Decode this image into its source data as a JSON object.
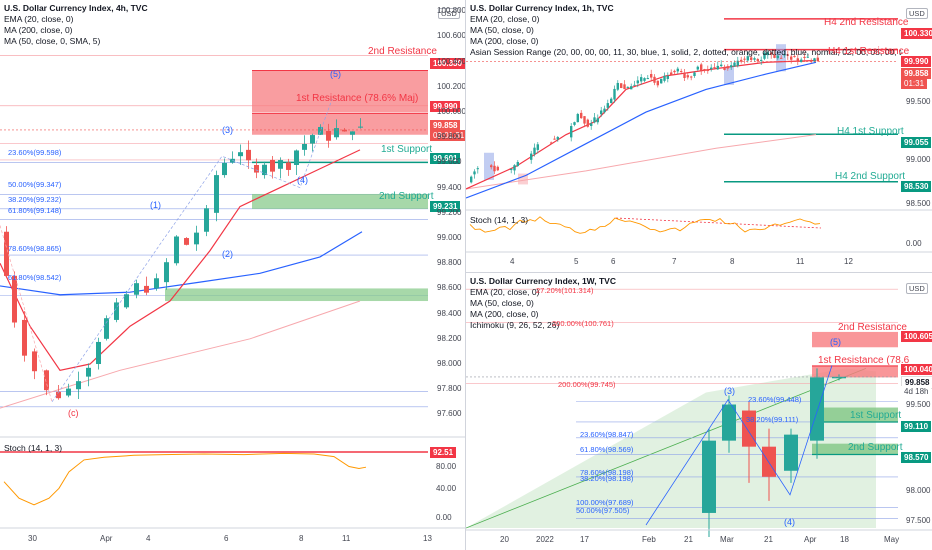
{
  "panels": {
    "left": {
      "legend": {
        "title": "U.S. Dollar Currency Index, 4h, TVC",
        "lines": [
          "EMA (20, close, 0)",
          "MA (200, close, 0)",
          "MA (50, close, 0, SMA, 5)"
        ]
      },
      "currency_badge": "USD",
      "price_ticks": [
        "100.800",
        "100.600",
        "100.400",
        "100.200",
        "100.000",
        "99.800",
        "99.600",
        "99.400",
        "99.200",
        "99.000",
        "98.800",
        "98.600",
        "98.400",
        "98.200",
        "98.000",
        "97.800",
        "97.600"
      ],
      "time_ticks": [
        "30",
        "Apr",
        "4",
        "6",
        "8",
        "11",
        "13"
      ],
      "zone_labels": {
        "r2": "2nd Resistance",
        "r1": "1st Resistance (78.6% Maj)",
        "s1": "1st Support",
        "s2": "2nd Support"
      },
      "fib_labels": [
        "23.60%(99.598)",
        "50.00%(99.347)",
        "38.20%(99.232)",
        "61.80%(99.148)",
        "78.60%(98.865)",
        "61.80%(98.542)"
      ],
      "wave_labels": [
        "(5)",
        "(3)",
        "(4)",
        "(1)",
        "(2)",
        "(c)"
      ],
      "price_tags": {
        "r2": "100.330",
        "r1": "99.990",
        "current": "99.858",
        "countdown": "03:01:31",
        "s1": "99.601",
        "s2": "99.231"
      },
      "stoch": {
        "title": "Stoch (14, 1, 3)",
        "value_tag": "92.51",
        "ticks": [
          "80.00",
          "40.00",
          "0.00"
        ]
      }
    },
    "top_right": {
      "legend": {
        "title": "U.S. Dollar Currency Index, 1h, TVC",
        "lines": [
          "EMA (20, close, 0)",
          "MA (50, close, 0)",
          "MA (200, close, 0)",
          "Asian Session Range (20, 00, 00, 00, 11, 30, blue, 1, solid, 2, dotted, orange, dotted, blue, normal, 02, 00, 05, 00, teal, 1, solid, 2, dotted, teal, dotted"
        ]
      },
      "currency_badge": "USD",
      "price_ticks": [
        "99.500",
        "99.000",
        "98.500"
      ],
      "time_ticks": [
        "4",
        "5",
        "6",
        "7",
        "8",
        "11",
        "12"
      ],
      "zone_labels": {
        "r2": "H4 2nd Resistance",
        "r1": "H4 1st Resistance",
        "s1": "H4 1st Support",
        "s2": "H4 2nd Support"
      },
      "price_tags": {
        "r2": "100.330",
        "r1": "99.990",
        "current": "99.858",
        "countdown": "01:31",
        "s1": "99.055",
        "s2": "98.530"
      },
      "stoch": {
        "title": "Stoch (14, 1, 3)",
        "ticks": [
          "0.00"
        ]
      }
    },
    "bottom_right": {
      "legend": {
        "title": "U.S. Dollar Currency Index, 1W, TVC",
        "lines": [
          "EMA (20, close, 0)",
          "MA (50, close, 0)",
          "MA (200, close, 0)",
          "Ichimoku (9, 26, 52, 26)"
        ]
      },
      "currency_badge": "USD",
      "price_ticks": [
        "99.500",
        "98.000",
        "97.500"
      ],
      "time_ticks": [
        "20",
        "2022",
        "17",
        "Feb",
        "21",
        "Mar",
        "21",
        "Apr",
        "18",
        "May"
      ],
      "zone_labels": {
        "r2": "2nd Resistance",
        "r1": "1st Resistance (78.6",
        "s1": "1st Support",
        "s2": "2nd Support"
      },
      "fib_labels_red": [
        "27.20%(101.314)",
        "200.00%(100.761)",
        "200.00%(99.745)"
      ],
      "fib_labels_blue": [
        "23.60%(99.448)",
        "38.20%(99.111)",
        "23.60%(98.847)",
        "61.80%(98.569)",
        "78.60%(98.198)",
        "38.20%(98.198)",
        "100.00%(97.689)",
        "50.00%(97.505)"
      ],
      "wave_labels": [
        "(5)",
        "(3)",
        "(4)"
      ],
      "price_tags": {
        "r2": "100.605",
        "r1": "100.040",
        "current": "99.858",
        "countdown": "4d 18h",
        "s1": "99.110",
        "s2": "98.570"
      }
    }
  },
  "colors": {
    "bull": "#26a69a",
    "bear": "#ef5350",
    "resistance_zone": "#f77c80",
    "resistance_line": "#f23645",
    "support_zone": "#81c784",
    "support_line": "#089981",
    "support_text": "#22ab94",
    "ema": "#f23645",
    "ma50": "#2962ff",
    "ma200": "#f7a8ad",
    "stoch": "#ff9800",
    "fib_blue": "#2962ff",
    "fib_red": "#f23645",
    "current_price": "#ef5350"
  },
  "chart_data": [
    {
      "type": "candlestick",
      "title": "U.S. Dollar Currency Index, 4h, TVC",
      "xlabel": "",
      "ylabel": "",
      "ylim": [
        97.4,
        100.9
      ],
      "grid": false,
      "x": [
        "30",
        "Apr",
        "4",
        "6",
        "8",
        "11"
      ],
      "series": [
        {
          "name": "EMA (20, close, 0)",
          "values": [
            98.6,
            97.95,
            98.4,
            99.0,
            99.45,
            99.7
          ]
        },
        {
          "name": "MA (50, close, 0, SMA, 5)",
          "values": [
            98.65,
            98.6,
            98.63,
            98.75,
            98.9,
            99.05
          ]
        },
        {
          "name": "MA (200, close, 0)",
          "values": [
            97.7,
            97.85,
            98.0,
            98.15,
            98.3,
            98.48
          ]
        }
      ],
      "levels": {
        "r2": 100.33,
        "r1": 99.99,
        "current": 99.858,
        "s1": 99.601,
        "s2": 99.231
      },
      "stoch": {
        "name": "Stoch (14, 1, 3)",
        "last": 92.51
      }
    },
    {
      "type": "candlestick",
      "title": "U.S. Dollar Currency Index, 1h, TVC",
      "xlabel": "",
      "ylabel": "",
      "ylim": [
        98.3,
        100.5
      ],
      "x": [
        "4",
        "5",
        "6",
        "7",
        "8",
        "11",
        "12"
      ],
      "levels": {
        "r2": 100.33,
        "r1": 99.99,
        "current": 99.858,
        "s1": 99.055,
        "s2": 98.53
      }
    },
    {
      "type": "candlestick",
      "title": "U.S. Dollar Currency Index, 1W, TVC",
      "xlabel": "",
      "ylabel": "",
      "ylim": [
        97.3,
        101.5
      ],
      "x": [
        "20",
        "2022",
        "17",
        "Feb",
        "21",
        "Mar",
        "21",
        "Apr",
        "18",
        "May"
      ],
      "levels": {
        "r2": 100.605,
        "r1": 100.04,
        "current": 99.858,
        "s1": 99.11,
        "s2": 98.57
      }
    }
  ]
}
